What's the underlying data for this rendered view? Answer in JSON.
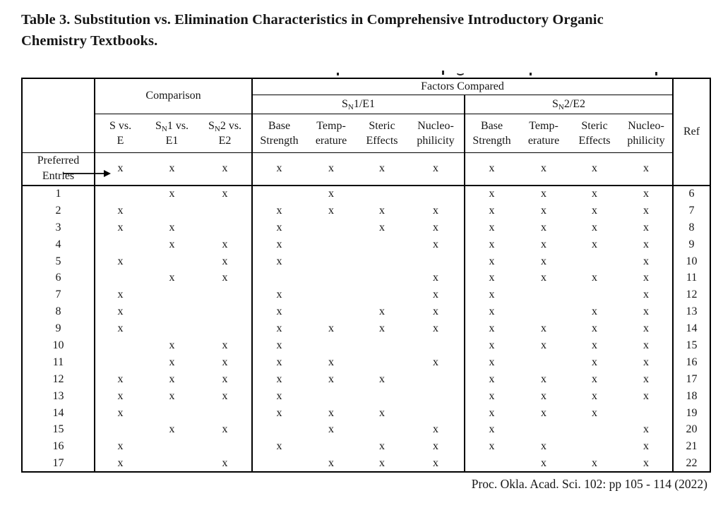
{
  "title": {
    "line1": "Table 3. Substitution vs. Elimination Characteristics in Comprehensive Introductory Organic",
    "line2": "Chemistry Textbooks."
  },
  "footer": {
    "citation": "Proc. Okla. Acad. Sci. 102: pp 105 - 114 (2022)"
  },
  "table": {
    "mark_char": "x",
    "header": {
      "comparison_label": "Comparison",
      "factors_label": "Factors Compared",
      "sn1e1_label": "S{N}1/E1",
      "sn2e2_label": "S{N}2/E2",
      "ref_label": "Ref",
      "columns": [
        {
          "line1": "S vs.",
          "line2": "E"
        },
        {
          "line1": "S{N}1 vs.",
          "line2": "E1"
        },
        {
          "line1": "S{N}2 vs.",
          "line2": "E2"
        },
        {
          "line1": "Base",
          "line2": "Strength"
        },
        {
          "line1": "Temp-",
          "line2": "erature"
        },
        {
          "line1": "Steric",
          "line2": "Effects"
        },
        {
          "line1": "Nucleo-",
          "line2": "philicity"
        },
        {
          "line1": "Base",
          "line2": "Strength"
        },
        {
          "line1": "Temp-",
          "line2": "erature"
        },
        {
          "line1": "Steric",
          "line2": "Effects"
        },
        {
          "line1": "Nucleo-",
          "line2": "philicity"
        }
      ]
    },
    "preferred": {
      "label_line1": "Preferred",
      "label_line2": "Entries",
      "marks": [
        1,
        1,
        1,
        1,
        1,
        1,
        1,
        1,
        1,
        1,
        1
      ]
    },
    "rows": [
      {
        "entry": "1",
        "marks": [
          0,
          1,
          1,
          0,
          1,
          0,
          0,
          1,
          1,
          1,
          1
        ],
        "ref": "6"
      },
      {
        "entry": "2",
        "marks": [
          1,
          0,
          0,
          1,
          1,
          1,
          1,
          1,
          1,
          1,
          1
        ],
        "ref": "7"
      },
      {
        "entry": "3",
        "marks": [
          1,
          1,
          0,
          1,
          0,
          1,
          1,
          1,
          1,
          1,
          1
        ],
        "ref": "8"
      },
      {
        "entry": "4",
        "marks": [
          0,
          1,
          1,
          1,
          0,
          0,
          1,
          1,
          1,
          1,
          1
        ],
        "ref": "9"
      },
      {
        "entry": "5",
        "marks": [
          1,
          0,
          1,
          1,
          0,
          0,
          0,
          1,
          1,
          0,
          1
        ],
        "ref": "10"
      },
      {
        "entry": "6",
        "marks": [
          0,
          1,
          1,
          0,
          0,
          0,
          1,
          1,
          1,
          1,
          1
        ],
        "ref": "11"
      },
      {
        "entry": "7",
        "marks": [
          1,
          0,
          0,
          1,
          0,
          0,
          1,
          1,
          0,
          0,
          1
        ],
        "ref": "12"
      },
      {
        "entry": "8",
        "marks": [
          1,
          0,
          0,
          1,
          0,
          1,
          1,
          1,
          0,
          1,
          1
        ],
        "ref": "13"
      },
      {
        "entry": "9",
        "marks": [
          1,
          0,
          0,
          1,
          1,
          1,
          1,
          1,
          1,
          1,
          1
        ],
        "ref": "14"
      },
      {
        "entry": "10",
        "marks": [
          0,
          1,
          1,
          1,
          0,
          0,
          0,
          1,
          1,
          1,
          1
        ],
        "ref": "15"
      },
      {
        "entry": "11",
        "marks": [
          0,
          1,
          1,
          1,
          1,
          0,
          1,
          1,
          0,
          1,
          1
        ],
        "ref": "16"
      },
      {
        "entry": "12",
        "marks": [
          1,
          1,
          1,
          1,
          1,
          1,
          0,
          1,
          1,
          1,
          1
        ],
        "ref": "17"
      },
      {
        "entry": "13",
        "marks": [
          1,
          1,
          1,
          1,
          0,
          0,
          0,
          1,
          1,
          1,
          1
        ],
        "ref": "18"
      },
      {
        "entry": "14",
        "marks": [
          1,
          0,
          0,
          1,
          1,
          1,
          0,
          1,
          1,
          1,
          0
        ],
        "ref": "19"
      },
      {
        "entry": "15",
        "marks": [
          0,
          1,
          1,
          0,
          1,
          0,
          1,
          1,
          0,
          0,
          1
        ],
        "ref": "20"
      },
      {
        "entry": "16",
        "marks": [
          1,
          0,
          0,
          1,
          0,
          1,
          1,
          1,
          1,
          0,
          1
        ],
        "ref": "21"
      },
      {
        "entry": "17",
        "marks": [
          1,
          0,
          1,
          0,
          1,
          1,
          1,
          0,
          1,
          1,
          1
        ],
        "ref": "22"
      }
    ]
  }
}
